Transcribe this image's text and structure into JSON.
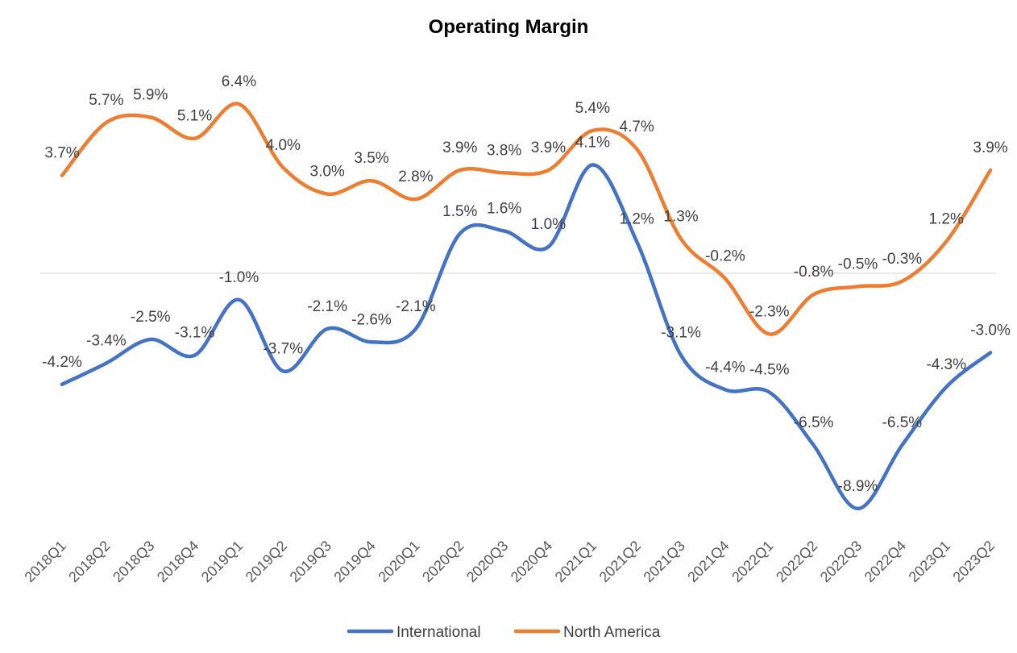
{
  "chart_data": {
    "type": "line",
    "title": "Operating Margin",
    "xlabel": "",
    "ylabel": "",
    "categories": [
      "2018Q1",
      "2018Q2",
      "2018Q3",
      "2018Q4",
      "2019Q1",
      "2019Q2",
      "2019Q3",
      "2019Q4",
      "2020Q1",
      "2020Q2",
      "2020Q3",
      "2020Q4",
      "2021Q1",
      "2021Q2",
      "2021Q3",
      "2021Q4",
      "2022Q1",
      "2022Q2",
      "2022Q3",
      "2022Q4",
      "2023Q1",
      "2023Q2"
    ],
    "series": [
      {
        "name": "International",
        "color": "#4472C4",
        "values": [
          -4.2,
          -3.4,
          -2.5,
          -3.1,
          -1.0,
          -3.7,
          -2.1,
          -2.6,
          -2.1,
          1.5,
          1.6,
          1.0,
          4.1,
          1.2,
          -3.1,
          -4.4,
          -4.5,
          -6.5,
          -8.9,
          -6.5,
          -4.3,
          -3.0
        ],
        "labels": [
          "-4.2%",
          "-3.4%",
          "-2.5%",
          "-3.1%",
          "-1.0%",
          "-3.7%",
          "-2.1%",
          "-2.6%",
          "-2.1%",
          "1.5%",
          "1.6%",
          "1.0%",
          "4.1%",
          "1.2%",
          "-3.1%",
          "-4.4%",
          "-4.5%",
          "-6.5%",
          "-8.9%",
          "-6.5%",
          "-4.3%",
          "-3.0%"
        ]
      },
      {
        "name": "North America",
        "color": "#ED7D31",
        "values": [
          3.7,
          5.7,
          5.9,
          5.1,
          6.4,
          4.0,
          3.0,
          3.5,
          2.8,
          3.9,
          3.8,
          3.9,
          5.4,
          4.7,
          1.3,
          -0.2,
          -2.3,
          -0.8,
          -0.5,
          -0.3,
          1.2,
          3.9
        ],
        "labels": [
          "3.7%",
          "5.7%",
          "5.9%",
          "5.1%",
          "6.4%",
          "4.0%",
          "3.0%",
          "3.5%",
          "2.8%",
          "3.9%",
          "3.8%",
          "3.9%",
          "5.4%",
          "4.7%",
          "1.3%",
          "-0.2%",
          "-2.3%",
          "-0.8%",
          "-0.5%",
          "-0.3%",
          "1.2%",
          "3.9%"
        ]
      }
    ],
    "ylim": [
      -11,
      8
    ],
    "smooth": true,
    "grid": false,
    "zero_line": true,
    "y_axis_visible": false,
    "legend_position": "bottom"
  }
}
